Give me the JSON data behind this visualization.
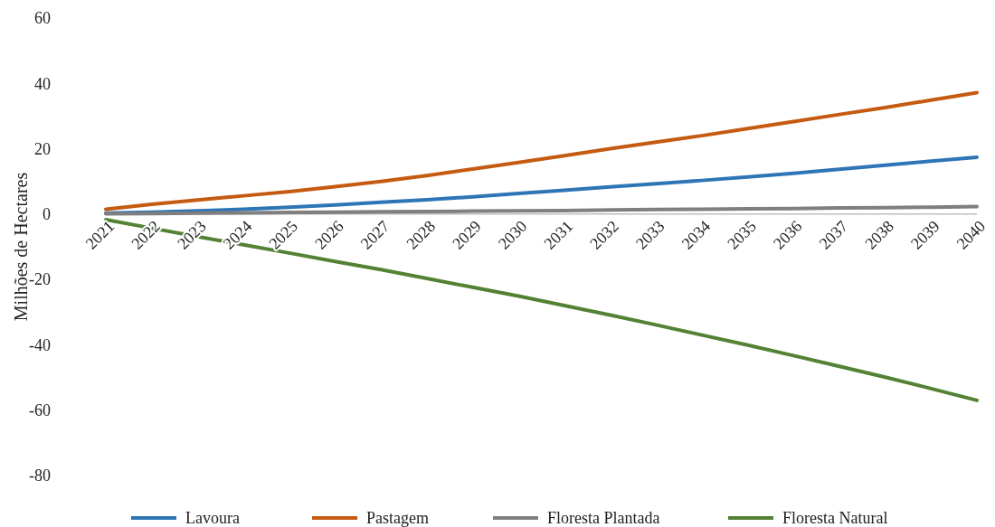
{
  "chart_data": {
    "type": "line",
    "ylabel": "Milhões de Hectares",
    "categories": [
      "2021",
      "2022",
      "2023",
      "2024",
      "2025",
      "2026",
      "2027",
      "2028",
      "2029",
      "2030",
      "2031",
      "2032",
      "2033",
      "2034",
      "2035",
      "2036",
      "2037",
      "2038",
      "2039",
      "2040"
    ],
    "ylim": [
      -80,
      60
    ],
    "yticks": [
      -80,
      -60,
      -40,
      -20,
      0,
      20,
      40,
      60
    ],
    "grid": false,
    "legend": "bottom",
    "marker": "none",
    "series": [
      {
        "name": "Lavoura",
        "color": "#2e75b6",
        "values": [
          0.3,
          0.6,
          1.0,
          1.5,
          2.1,
          2.8,
          3.6,
          4.4,
          5.3,
          6.3,
          7.3,
          8.3,
          9.3,
          10.3,
          11.4,
          12.5,
          13.7,
          15.0,
          16.2,
          17.4
        ]
      },
      {
        "name": "Pastagem",
        "color": "#c55a11",
        "values": [
          1.5,
          3.0,
          4.3,
          5.6,
          6.9,
          8.4,
          10.0,
          11.8,
          13.8,
          15.8,
          17.9,
          20.0,
          22.0,
          24.0,
          26.2,
          28.3,
          30.5,
          32.6,
          34.9,
          37.2
        ]
      },
      {
        "name": "Floresta Plantada",
        "color": "#7f7f7f",
        "values": [
          0.1,
          0.2,
          0.3,
          0.4,
          0.5,
          0.6,
          0.7,
          0.8,
          0.9,
          1.0,
          1.1,
          1.3,
          1.4,
          1.5,
          1.6,
          1.7,
          1.9,
          2.0,
          2.1,
          2.3
        ]
      },
      {
        "name": "Floresta Natural",
        "color": "#548235",
        "values": [
          -1.7,
          -4.3,
          -6.9,
          -9.4,
          -11.9,
          -14.5,
          -17.0,
          -19.7,
          -22.4,
          -25.1,
          -28.0,
          -30.9,
          -33.9,
          -37.0,
          -40.1,
          -43.3,
          -46.6,
          -49.9,
          -53.4,
          -57.0
        ]
      }
    ]
  }
}
